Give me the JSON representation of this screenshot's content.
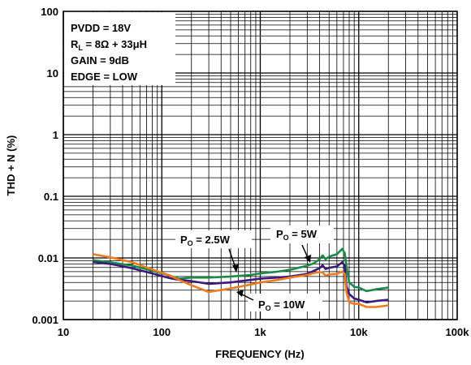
{
  "chart_data": {
    "type": "line",
    "xscale": "log",
    "yscale": "log",
    "xlabel": "FREQUENCY (Hz)",
    "ylabel": "THD + N (%)",
    "xlim": [
      10,
      100000
    ],
    "ylim": [
      0.001,
      100
    ],
    "grid": true,
    "x_ticks": [
      {
        "value": 10,
        "label": "10"
      },
      {
        "value": 100,
        "label": "100"
      },
      {
        "value": 1000,
        "label": "1k"
      },
      {
        "value": 10000,
        "label": "10k"
      },
      {
        "value": 100000,
        "label": "100k"
      }
    ],
    "y_ticks": [
      {
        "value": 0.001,
        "label": "0.001"
      },
      {
        "value": 0.01,
        "label": "0.01"
      },
      {
        "value": 0.1,
        "label": "0.1"
      },
      {
        "value": 1,
        "label": "1"
      },
      {
        "value": 10,
        "label": "10"
      },
      {
        "value": 100,
        "label": "100"
      }
    ],
    "conditions": [
      {
        "main": "PVDD = 18V",
        "sub": "",
        "rest": ""
      },
      {
        "main": "R",
        "sub": "L",
        "rest": " = 8Ω + 33μH"
      },
      {
        "main": "GAIN = 9dB",
        "sub": "",
        "rest": ""
      },
      {
        "main": "EDGE = LOW",
        "sub": "",
        "rest": ""
      }
    ],
    "series": [
      {
        "label_main": "P",
        "label_sub": "O",
        "label_rest": " = 5W",
        "color": "#1a8a4a",
        "x": [
          20,
          30,
          50,
          80,
          120,
          150,
          200,
          300,
          500,
          800,
          1000,
          1500,
          2000,
          3000,
          3500,
          4000,
          4300,
          4600,
          5000,
          6000,
          6800,
          7200,
          7500,
          8000,
          9000,
          10000,
          12000,
          15000,
          20000
        ],
        "y": [
          0.0092,
          0.0085,
          0.0075,
          0.0062,
          0.0052,
          0.0046,
          0.0048,
          0.0048,
          0.005,
          0.0053,
          0.0056,
          0.006,
          0.0064,
          0.0075,
          0.0082,
          0.0095,
          0.011,
          0.0095,
          0.0105,
          0.0115,
          0.014,
          0.012,
          0.0075,
          0.004,
          0.0034,
          0.0033,
          0.0029,
          0.0031,
          0.0033
        ]
      },
      {
        "label_main": "P",
        "label_sub": "O",
        "label_rest": " = 2.5W",
        "color": "#3a1a7a",
        "x": [
          20,
          30,
          50,
          80,
          120,
          150,
          200,
          300,
          500,
          800,
          1000,
          1500,
          2000,
          3000,
          3500,
          4000,
          4300,
          4600,
          5000,
          6000,
          6800,
          7200,
          7500,
          8000,
          9000,
          10000,
          12000,
          15000,
          20000
        ],
        "y": [
          0.0086,
          0.008,
          0.0068,
          0.0056,
          0.0047,
          0.0044,
          0.0042,
          0.0038,
          0.004,
          0.0044,
          0.0046,
          0.0048,
          0.005,
          0.0055,
          0.0062,
          0.0068,
          0.0076,
          0.0066,
          0.0069,
          0.0073,
          0.0085,
          0.0075,
          0.0035,
          0.0026,
          0.0022,
          0.0021,
          0.0019,
          0.002,
          0.0021
        ]
      },
      {
        "label_main": "P",
        "label_sub": "O",
        "label_rest": " = 10W",
        "color": "#f07a20",
        "x": [
          20,
          30,
          50,
          80,
          120,
          150,
          200,
          300,
          500,
          800,
          1000,
          1500,
          2000,
          3000,
          3500,
          4000,
          4300,
          4600,
          5000,
          6000,
          6800,
          7200,
          7500,
          8000,
          9000,
          10000,
          12000,
          15000,
          20000
        ],
        "y": [
          0.0115,
          0.0102,
          0.0085,
          0.0065,
          0.0052,
          0.0044,
          0.0036,
          0.0028,
          0.0032,
          0.0037,
          0.004,
          0.0044,
          0.0048,
          0.0053,
          0.0057,
          0.0059,
          0.0058,
          0.0052,
          0.0054,
          0.0055,
          0.006,
          0.0055,
          0.0028,
          0.0019,
          0.0018,
          0.0018,
          0.0016,
          0.0016,
          0.0017
        ]
      }
    ]
  }
}
